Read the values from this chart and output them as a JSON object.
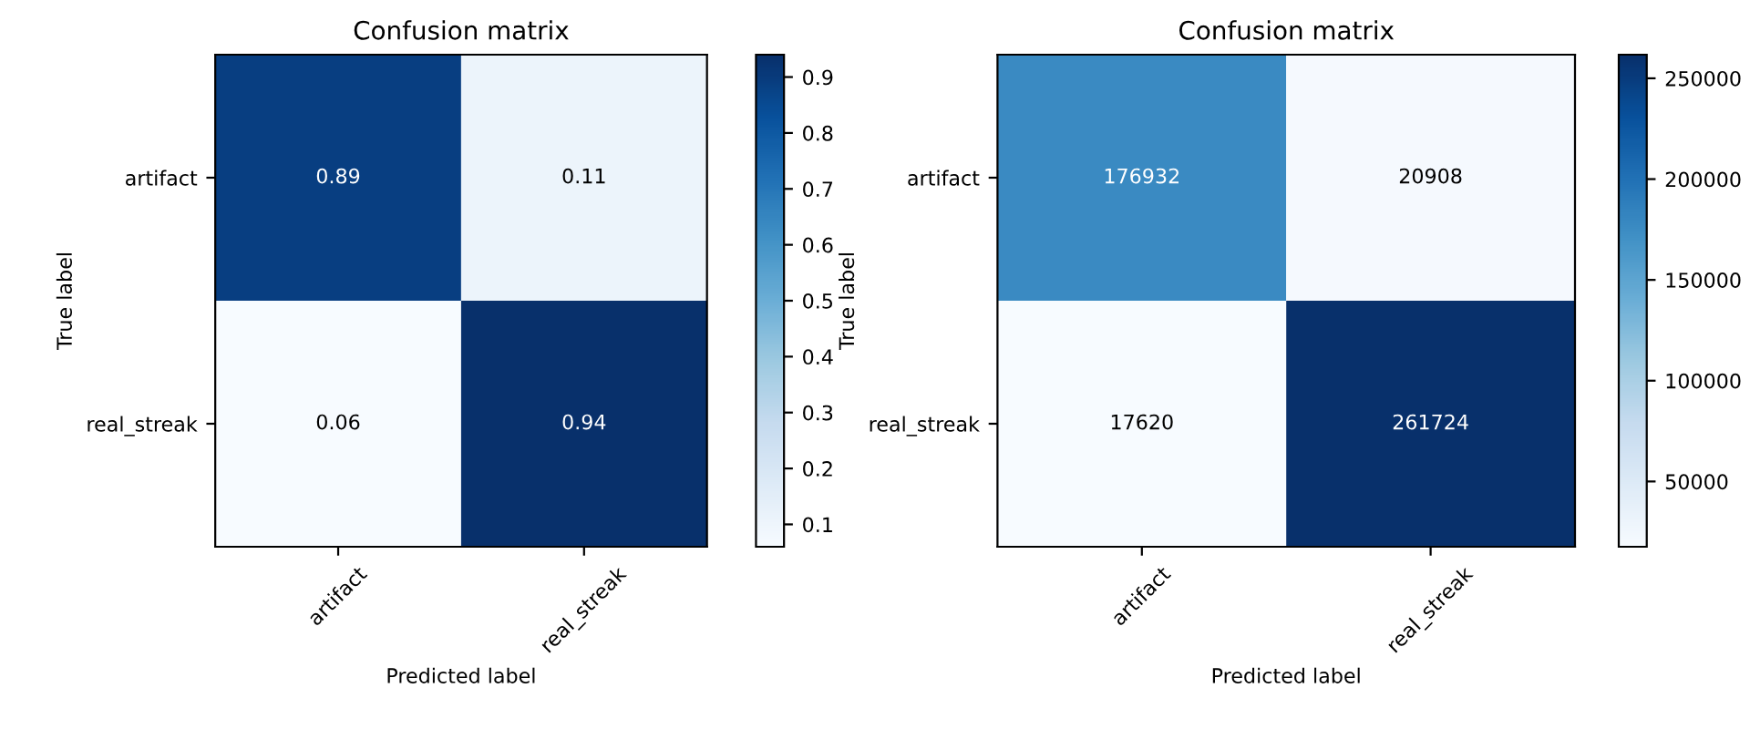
{
  "chart_data": [
    {
      "type": "heatmap",
      "title": "Confusion matrix",
      "xlabel": "Predicted label",
      "ylabel": "True label",
      "categories": [
        "artifact",
        "real_streak"
      ],
      "y_categories": [
        "artifact",
        "real_streak"
      ],
      "cells": [
        [
          0.89,
          0.11
        ],
        [
          0.06,
          0.94
        ]
      ],
      "data_labels": true,
      "clim": [
        0.06,
        0.94
      ],
      "cticks": [
        0.1,
        0.2,
        0.3,
        0.4,
        0.5,
        0.6,
        0.7,
        0.8,
        0.9
      ]
    },
    {
      "type": "heatmap",
      "title": "Confusion matrix",
      "xlabel": "Predicted label",
      "ylabel": "True label",
      "categories": [
        "artifact",
        "real_streak"
      ],
      "y_categories": [
        "artifact",
        "real_streak"
      ],
      "cells": [
        [
          176932,
          20908
        ],
        [
          17620,
          261724
        ]
      ],
      "data_labels": true,
      "clim": [
        17620,
        261724
      ],
      "cticks": [
        50000,
        100000,
        150000,
        200000,
        250000
      ]
    }
  ]
}
